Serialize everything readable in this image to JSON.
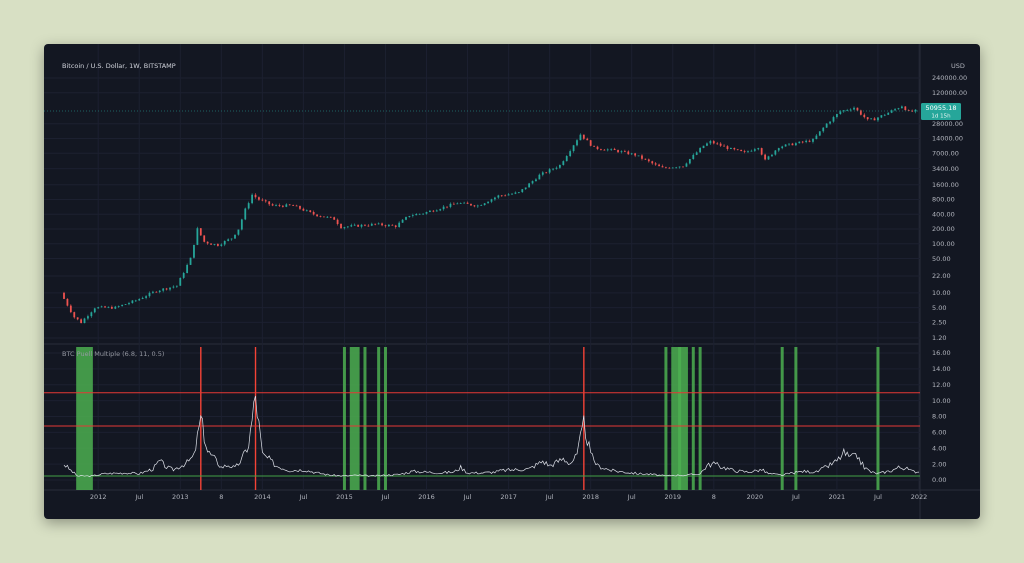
{
  "chart_data": [
    {
      "type": "candlestick",
      "title": "Bitcoin / U.S. Dollar, 1W, BITSTAMP",
      "y_scale": "log",
      "y_unit": "USD",
      "y_ticks": [
        "240000.00",
        "120000.00",
        "28000.00",
        "14000.00",
        "7000.00",
        "3400.00",
        "1600.00",
        "800.00",
        "400.00",
        "200.00",
        "100.00",
        "50.00",
        "22.00",
        "10.00",
        "5.00",
        "2.50",
        "1.20"
      ],
      "x_ticks": [
        "2012",
        "Jul",
        "2013",
        "8",
        "2014",
        "Jul",
        "2015",
        "Jul",
        "2016",
        "Jul",
        "2017",
        "Jul",
        "2018",
        "Jul",
        "2019",
        "8",
        "2020",
        "Jul",
        "2021",
        "Jul",
        "2022"
      ],
      "x_range": [
        "2011-08",
        "2022-01"
      ],
      "last_price": "50955.18",
      "last_price_sub": "1d 15h",
      "up_color": "#26a69a",
      "down_color": "#ef5350",
      "price_path": [
        [
          "2011-08",
          10
        ],
        [
          "2011-10",
          3.2
        ],
        [
          "2011-11",
          2.5
        ],
        [
          "2012-01",
          5
        ],
        [
          "2012-04",
          5
        ],
        [
          "2012-07",
          7
        ],
        [
          "2012-10",
          11
        ],
        [
          "2013-01",
          14
        ],
        [
          "2013-03",
          50
        ],
        [
          "2013-04",
          200
        ],
        [
          "2013-05",
          110
        ],
        [
          "2013-06",
          100
        ],
        [
          "2013-07",
          95
        ],
        [
          "2013-09",
          130
        ],
        [
          "2013-10",
          200
        ],
        [
          "2013-11",
          500
        ],
        [
          "2013-12",
          1000
        ],
        [
          "2014-01",
          800
        ],
        [
          "2014-03",
          600
        ],
        [
          "2014-06",
          600
        ],
        [
          "2014-09",
          400
        ],
        [
          "2014-12",
          320
        ],
        [
          "2015-01",
          220
        ],
        [
          "2015-06",
          250
        ],
        [
          "2015-09",
          230
        ],
        [
          "2015-11",
          380
        ],
        [
          "2016-01",
          420
        ],
        [
          "2016-06",
          680
        ],
        [
          "2016-09",
          600
        ],
        [
          "2016-12",
          950
        ],
        [
          "2017-03",
          1100
        ],
        [
          "2017-06",
          2500
        ],
        [
          "2017-09",
          4000
        ],
        [
          "2017-12",
          17000
        ],
        [
          "2018-02",
          9000
        ],
        [
          "2018-05",
          8000
        ],
        [
          "2018-08",
          6500
        ],
        [
          "2018-11",
          4000
        ],
        [
          "2018-12",
          3500
        ],
        [
          "2019-03",
          3900
        ],
        [
          "2019-06",
          10000
        ],
        [
          "2019-07",
          12000
        ],
        [
          "2019-10",
          8500
        ],
        [
          "2019-12",
          7200
        ],
        [
          "2020-02",
          9500
        ],
        [
          "2020-03",
          5000
        ],
        [
          "2020-05",
          9500
        ],
        [
          "2020-08",
          11500
        ],
        [
          "2020-10",
          13000
        ],
        [
          "2020-12",
          28000
        ],
        [
          "2021-02",
          50000
        ],
        [
          "2021-04",
          60000
        ],
        [
          "2021-06",
          33000
        ],
        [
          "2021-07",
          35000
        ],
        [
          "2021-09",
          47000
        ],
        [
          "2021-11",
          65000
        ],
        [
          "2021-12",
          49000
        ],
        [
          "2022-01",
          51000
        ]
      ]
    },
    {
      "type": "line",
      "title": "BTC Puell Multiple (6.8, 11, 0.5)",
      "y_ticks": [
        "16.00",
        "14.00",
        "12.00",
        "10.00",
        "8.00",
        "6.00",
        "4.00",
        "2.00",
        "0.00"
      ],
      "y_range": [
        0,
        16
      ],
      "thresholds": [
        {
          "value": 11,
          "color": "#e53935"
        },
        {
          "value": 6.8,
          "color": "#e53935"
        },
        {
          "value": 0.5,
          "color": "#43a047"
        }
      ],
      "red_markers": [
        "2013-04",
        "2013-12",
        "2017-12"
      ],
      "green_zones": [
        [
          "2011-10",
          "2011-12"
        ],
        [
          "2015-01",
          "2015-01"
        ],
        [
          "2015-02",
          "2015-03"
        ],
        [
          "2015-04",
          "2015-04"
        ],
        [
          "2015-06",
          "2015-06"
        ],
        [
          "2015-07",
          "2015-07"
        ],
        [
          "2018-12",
          "2018-12"
        ],
        [
          "2019-01",
          "2019-02"
        ],
        [
          "2019-02",
          "2019-03"
        ],
        [
          "2019-04",
          "2019-04"
        ],
        [
          "2019-05",
          "2019-05"
        ],
        [
          "2020-05",
          "2020-05"
        ],
        [
          "2020-07",
          "2020-07"
        ],
        [
          "2021-07",
          "2021-07"
        ]
      ],
      "series": [
        [
          "2011-08",
          2.0
        ],
        [
          "2011-09",
          1.2
        ],
        [
          "2011-10",
          0.5
        ],
        [
          "2011-12",
          0.5
        ],
        [
          "2012-02",
          0.8
        ],
        [
          "2012-05",
          0.9
        ],
        [
          "2012-07",
          0.8
        ],
        [
          "2012-09",
          1.4
        ],
        [
          "2012-10",
          2.4
        ],
        [
          "2012-11",
          1.6
        ],
        [
          "2012-12",
          1.3
        ],
        [
          "2013-02",
          2.2
        ],
        [
          "2013-03",
          3.0
        ],
        [
          "2013-04",
          7.7
        ],
        [
          "2013-05",
          3.6
        ],
        [
          "2013-06",
          2.7
        ],
        [
          "2013-07",
          1.6
        ],
        [
          "2013-08",
          1.9
        ],
        [
          "2013-09",
          1.5
        ],
        [
          "2013-10",
          2.6
        ],
        [
          "2013-11",
          4.5
        ],
        [
          "2013-12",
          10.6
        ],
        [
          "2014-01",
          3.2
        ],
        [
          "2014-02",
          2.6
        ],
        [
          "2014-03",
          1.8
        ],
        [
          "2014-05",
          1.2
        ],
        [
          "2014-07",
          1.3
        ],
        [
          "2014-09",
          0.9
        ],
        [
          "2014-11",
          0.6
        ],
        [
          "2015-01",
          0.5
        ],
        [
          "2015-03",
          0.6
        ],
        [
          "2015-05",
          0.5
        ],
        [
          "2015-07",
          0.6
        ],
        [
          "2015-09",
          0.7
        ],
        [
          "2015-11",
          1.1
        ],
        [
          "2016-01",
          1.0
        ],
        [
          "2016-03",
          0.9
        ],
        [
          "2016-05",
          1.0
        ],
        [
          "2016-06",
          1.6
        ],
        [
          "2016-07",
          0.9
        ],
        [
          "2016-09",
          0.9
        ],
        [
          "2016-11",
          1.0
        ],
        [
          "2016-12",
          1.2
        ],
        [
          "2017-02",
          1.3
        ],
        [
          "2017-04",
          1.4
        ],
        [
          "2017-06",
          2.4
        ],
        [
          "2017-07",
          1.8
        ],
        [
          "2017-09",
          2.7
        ],
        [
          "2017-10",
          2.1
        ],
        [
          "2017-11",
          3.1
        ],
        [
          "2017-12",
          7.1
        ],
        [
          "2018-01",
          3.2
        ],
        [
          "2018-02",
          1.8
        ],
        [
          "2018-04",
          1.2
        ],
        [
          "2018-06",
          1.0
        ],
        [
          "2018-08",
          0.8
        ],
        [
          "2018-10",
          0.7
        ],
        [
          "2018-12",
          0.5
        ],
        [
          "2019-01",
          0.6
        ],
        [
          "2019-03",
          0.6
        ],
        [
          "2019-05",
          0.8
        ],
        [
          "2019-06",
          1.8
        ],
        [
          "2019-07",
          2.1
        ],
        [
          "2019-08",
          1.7
        ],
        [
          "2019-10",
          1.2
        ],
        [
          "2019-12",
          1.0
        ],
        [
          "2020-02",
          1.3
        ],
        [
          "2020-03",
          0.8
        ],
        [
          "2020-05",
          0.6
        ],
        [
          "2020-06",
          0.8
        ],
        [
          "2020-08",
          1.1
        ],
        [
          "2020-10",
          1.0
        ],
        [
          "2020-12",
          1.9
        ],
        [
          "2021-01",
          2.4
        ],
        [
          "2021-02",
          3.4
        ],
        [
          "2021-03",
          2.8
        ],
        [
          "2021-04",
          3.0
        ],
        [
          "2021-05",
          1.6
        ],
        [
          "2021-06",
          1.0
        ],
        [
          "2021-07",
          0.8
        ],
        [
          "2021-09",
          1.2
        ],
        [
          "2021-10",
          1.6
        ],
        [
          "2021-11",
          1.5
        ],
        [
          "2021-12",
          1.1
        ],
        [
          "2022-01",
          1.0
        ]
      ]
    }
  ]
}
